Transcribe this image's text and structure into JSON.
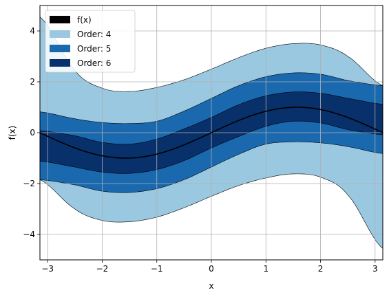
{
  "chart_data": {
    "type": "area",
    "title": "",
    "xlabel": "x",
    "ylabel": "f(x)",
    "xlim": [
      -3.14159,
      3.14159
    ],
    "ylim": [
      -5,
      5
    ],
    "xticks": [
      -3,
      -2,
      -1,
      0,
      1,
      2,
      3
    ],
    "yticks": [
      -4,
      -2,
      0,
      2,
      4
    ],
    "xtick_labels": [
      "−3",
      "−2",
      "−1",
      "0",
      "1",
      "2",
      "3"
    ],
    "ytick_labels": [
      "−4",
      "−2",
      "0",
      "2",
      "4"
    ],
    "grid": true,
    "legend_position": "top-left",
    "function": "sin(x)",
    "line": {
      "name": "f(x)",
      "color": "#000000"
    },
    "bands": [
      {
        "name": "Order: 4",
        "color": "#9ac8e0",
        "halfwidth_at_0": 2.5,
        "note_lower_at_xmin": -1.9,
        "note_upper_at_xmax": 1.85
      },
      {
        "name": "Order: 5",
        "color": "#1a68ae",
        "halfwidth_at_0": 1.35
      },
      {
        "name": "Order: 6",
        "color": "#08306b",
        "halfwidth_at_0": 0.6
      }
    ],
    "band_series": [
      {
        "name": "Order: 4",
        "x": [
          -3.1416,
          -2.5,
          -2.0,
          -1.5,
          -1.0,
          -0.5,
          0.0,
          0.5,
          1.0,
          1.5,
          2.0,
          2.5,
          3.1416
        ],
        "upper": [
          4.55,
          2.45,
          1.75,
          1.62,
          1.78,
          2.08,
          2.5,
          2.95,
          3.32,
          3.5,
          3.45,
          3.0,
          1.85
        ],
        "lower": [
          -1.85,
          -3.0,
          -3.45,
          -3.5,
          -3.32,
          -2.95,
          -2.5,
          -2.08,
          -1.78,
          -1.62,
          -1.75,
          -2.45,
          -4.55
        ]
      },
      {
        "name": "Order: 5",
        "x": [
          -3.1416,
          -2.5,
          -2.0,
          -1.5,
          -1.0,
          -0.5,
          0.0,
          0.5,
          1.0,
          1.5,
          2.0,
          2.5,
          3.1416
        ],
        "upper": [
          0.82,
          0.55,
          0.4,
          0.36,
          0.45,
          0.85,
          1.35,
          1.85,
          2.2,
          2.35,
          2.3,
          2.05,
          1.85
        ],
        "lower": [
          -1.85,
          -2.05,
          -2.3,
          -2.35,
          -2.2,
          -1.85,
          -1.35,
          -0.85,
          -0.45,
          -0.36,
          -0.4,
          -0.55,
          -0.82
        ]
      },
      {
        "name": "Order: 6",
        "x": [
          -3.1416,
          -2.5,
          -2.0,
          -1.5,
          -1.0,
          -0.5,
          0.0,
          0.5,
          1.0,
          1.5,
          2.0,
          2.5,
          3.1416
        ],
        "upper": [
          0.08,
          -0.12,
          -0.38,
          -0.45,
          -0.25,
          0.15,
          0.6,
          1.1,
          1.45,
          1.6,
          1.55,
          1.35,
          1.12
        ],
        "lower": [
          -1.12,
          -1.35,
          -1.55,
          -1.6,
          -1.45,
          -1.1,
          -0.6,
          -0.15,
          0.25,
          0.45,
          0.38,
          0.12,
          -0.08
        ]
      }
    ]
  }
}
